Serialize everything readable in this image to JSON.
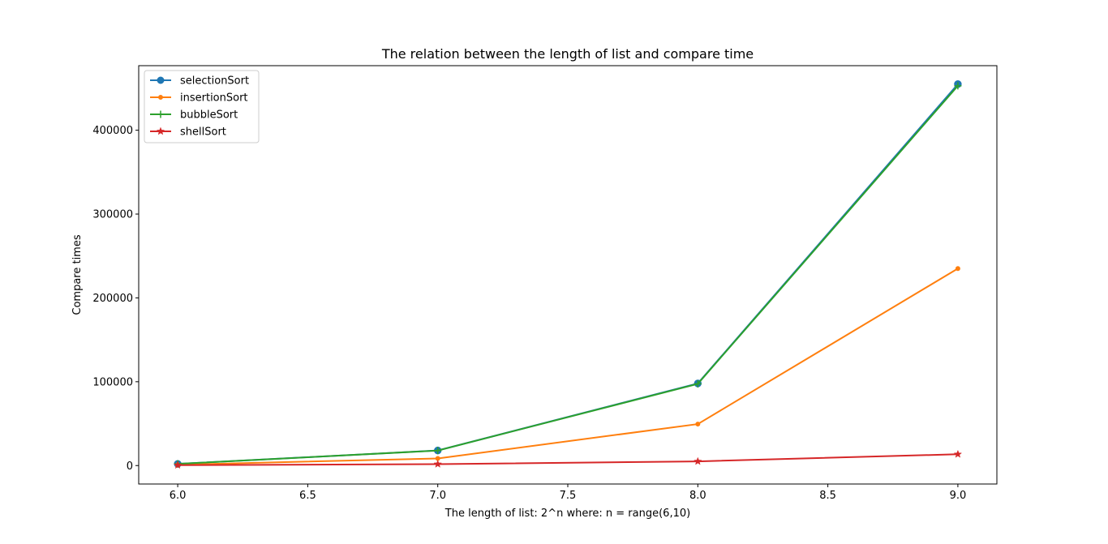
{
  "chart_data": {
    "type": "line",
    "title": "The relation between the length of list and compare time",
    "xlabel": "The length of list: 2^n where: n = range(6,10)",
    "ylabel": "Compare times",
    "x": [
      6.0,
      7.0,
      8.0,
      9.0
    ],
    "xlim": [
      5.85,
      9.15
    ],
    "ylim": [
      -22000,
      477000
    ],
    "xticks": [
      6.0,
      6.5,
      7.0,
      7.5,
      8.0,
      8.5,
      9.0
    ],
    "xtick_labels": [
      "6.0",
      "6.5",
      "7.0",
      "7.5",
      "8.0",
      "8.5",
      "9.0"
    ],
    "yticks": [
      0,
      100000,
      200000,
      300000,
      400000
    ],
    "ytick_labels": [
      "0",
      "100000",
      "200000",
      "300000",
      "400000"
    ],
    "grid": false,
    "legend_position": "top-left",
    "series": [
      {
        "name": "selectionSort",
        "color": "#1f77b4",
        "marker": "circle",
        "values": [
          2016,
          18000,
          98000,
          455000
        ]
      },
      {
        "name": "insertionSort",
        "color": "#ff7f0e",
        "marker": "point",
        "values": [
          1000,
          8500,
          49500,
          235000
        ]
      },
      {
        "name": "bubbleSort",
        "color": "#2ca02c",
        "marker": "plus",
        "values": [
          2016,
          17900,
          97500,
          453000
        ]
      },
      {
        "name": "shellSort",
        "color": "#d62728",
        "marker": "star",
        "values": [
          500,
          1700,
          5000,
          13500
        ]
      }
    ]
  }
}
